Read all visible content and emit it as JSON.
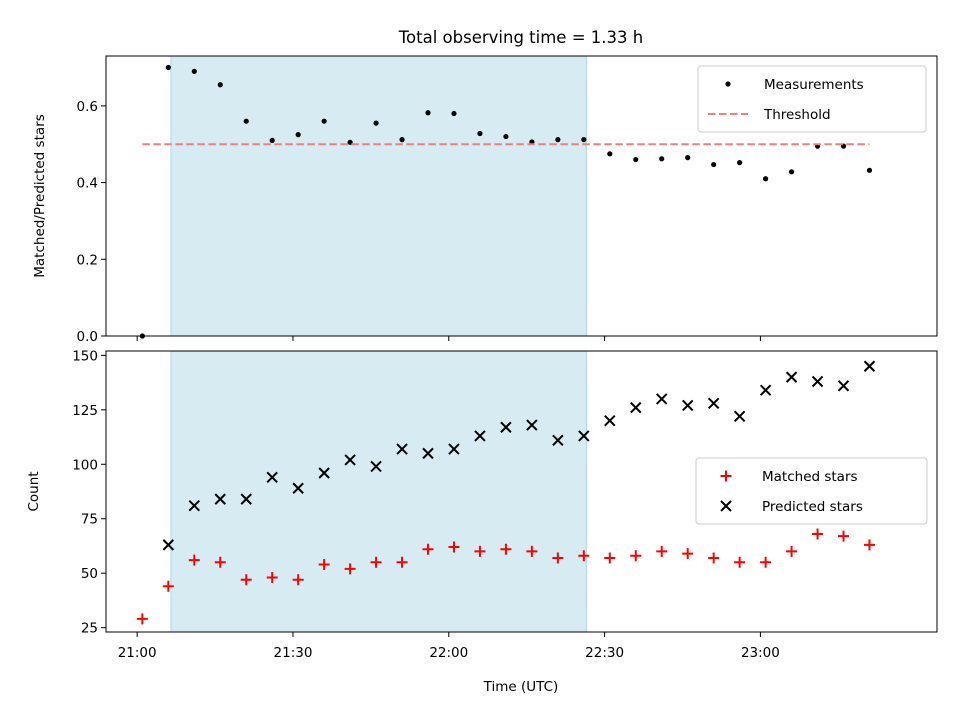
{
  "figure": {
    "title": "Total observing time = 1.33 h",
    "xlabel": "Time (UTC)"
  },
  "colors": {
    "highlight": "#add8e6",
    "measurement": "#000000",
    "threshold": "#f08080",
    "matched": "#ff0000",
    "predicted": "#000000"
  },
  "chart_data": [
    {
      "type": "scatter",
      "ylabel": "Matched/Predicted stars",
      "x_axis": "time",
      "xlim": [
        "20:54",
        "23:34"
      ],
      "ylim": [
        0.0,
        0.73
      ],
      "grid": false,
      "legend_position": "upper right",
      "shaded_span": {
        "x_start": "21:06.5",
        "x_end": "22:26.5"
      },
      "xticks": [],
      "yticks": [
        "0.0",
        "0.2",
        "0.4",
        "0.6"
      ],
      "series": [
        {
          "name": "Measurements",
          "marker": "dot",
          "x": [
            "21:01",
            "21:06",
            "21:11",
            "21:16",
            "21:21",
            "21:26",
            "21:31",
            "21:36",
            "21:41",
            "21:46",
            "21:51",
            "21:56",
            "22:01",
            "22:06",
            "22:11",
            "22:16",
            "22:21",
            "22:26",
            "22:31",
            "22:36",
            "22:41",
            "22:46",
            "22:51",
            "22:56",
            "23:01",
            "23:06",
            "23:11",
            "23:16",
            "23:21"
          ],
          "y": [
            0.0,
            0.7,
            0.69,
            0.655,
            0.56,
            0.51,
            0.525,
            0.56,
            0.505,
            0.555,
            0.512,
            0.582,
            0.58,
            0.528,
            0.52,
            0.506,
            0.512,
            0.512,
            0.475,
            0.46,
            0.462,
            0.465,
            0.447,
            0.452,
            0.41,
            0.428,
            0.495,
            0.495,
            0.432
          ]
        },
        {
          "name": "Threshold",
          "marker": "dashed-line",
          "x": [
            "21:01",
            "23:21"
          ],
          "y": [
            0.5,
            0.5
          ]
        }
      ]
    },
    {
      "type": "scatter",
      "ylabel": "Count",
      "x_axis": "time",
      "xlim": [
        "20:54",
        "23:34"
      ],
      "ylim": [
        23.0,
        152.0
      ],
      "grid": false,
      "legend_position": "center right",
      "shaded_span": {
        "x_start": "21:06.5",
        "x_end": "22:26.5"
      },
      "xticks": [
        "21:00",
        "21:30",
        "22:00",
        "22:30",
        "23:00"
      ],
      "yticks": [
        "25",
        "50",
        "75",
        "100",
        "125",
        "150"
      ],
      "series": [
        {
          "name": "Matched stars",
          "marker": "plus",
          "x": [
            "21:01",
            "21:06",
            "21:11",
            "21:16",
            "21:21",
            "21:26",
            "21:31",
            "21:36",
            "21:41",
            "21:46",
            "21:51",
            "21:56",
            "22:01",
            "22:06",
            "22:11",
            "22:16",
            "22:21",
            "22:26",
            "22:31",
            "22:36",
            "22:41",
            "22:46",
            "22:51",
            "22:56",
            "23:01",
            "23:06",
            "23:11",
            "23:16",
            "23:21"
          ],
          "y": [
            29,
            44,
            56,
            55,
            47,
            48,
            47,
            54,
            52,
            55,
            55,
            61,
            62,
            60,
            61,
            60,
            57,
            58,
            57,
            58,
            60,
            59,
            57,
            55,
            55,
            60,
            68,
            67,
            63
          ]
        },
        {
          "name": "Predicted stars",
          "marker": "x",
          "x": [
            "21:06",
            "21:11",
            "21:16",
            "21:21",
            "21:26",
            "21:31",
            "21:36",
            "21:41",
            "21:46",
            "21:51",
            "21:56",
            "22:01",
            "22:06",
            "22:11",
            "22:16",
            "22:21",
            "22:26",
            "22:31",
            "22:36",
            "22:41",
            "22:46",
            "22:51",
            "22:56",
            "23:01",
            "23:06",
            "23:11",
            "23:16",
            "23:21"
          ],
          "y": [
            63,
            81,
            84,
            84,
            94,
            89,
            96,
            102,
            99,
            107,
            105,
            107,
            113,
            117,
            118,
            111,
            113,
            120,
            126,
            130,
            127,
            128,
            122,
            134,
            140,
            138,
            136,
            145
          ]
        }
      ]
    }
  ]
}
